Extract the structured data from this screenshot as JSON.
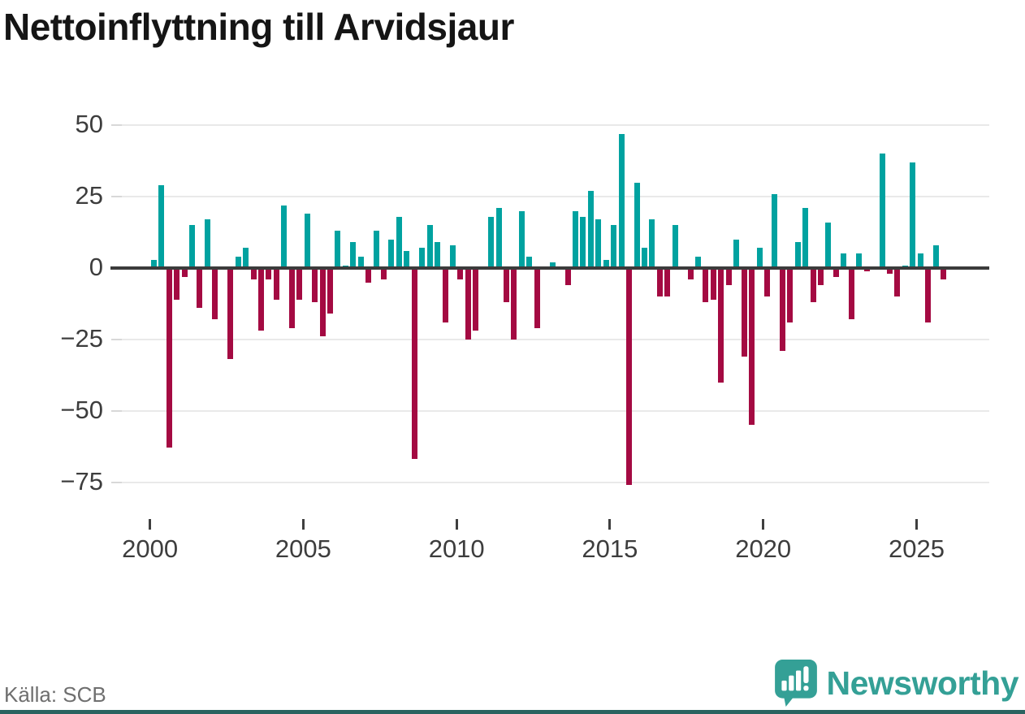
{
  "title": "Nettoinflyttning till Arvidsjaur",
  "source": "Källa: SCB",
  "brand": {
    "name": "Newsworthy",
    "icon": "newsworthy-speech-bubble-chart-icon"
  },
  "colors": {
    "positive": "#00a2a0",
    "negative": "#a40a42",
    "grid": "#e9e9e9",
    "zero_line": "#3b3b3b",
    "axis_text": "#3d3d3d",
    "title_text": "#151515",
    "source_text": "#6f6f6f",
    "brand_teal": "#34a096",
    "bottom_border": "#2a6360"
  },
  "chart_data": {
    "type": "bar",
    "title": "Nettoinflyttning till Arvidsjaur",
    "xlabel": "",
    "ylabel": "",
    "x_unit": "quarter",
    "grid": true,
    "legend": "none",
    "ylim": [
      -80,
      54
    ],
    "yticks": [
      50,
      25,
      0,
      -25,
      -50,
      -75
    ],
    "xticks": [
      2000,
      2005,
      2010,
      2015,
      2020,
      2025
    ],
    "categories": [
      "2000Q1",
      "2000Q2",
      "2000Q3",
      "2000Q4",
      "2001Q1",
      "2001Q2",
      "2001Q3",
      "2001Q4",
      "2002Q1",
      "2002Q2",
      "2002Q3",
      "2002Q4",
      "2003Q1",
      "2003Q2",
      "2003Q3",
      "2003Q4",
      "2004Q1",
      "2004Q2",
      "2004Q3",
      "2004Q4",
      "2005Q1",
      "2005Q2",
      "2005Q3",
      "2005Q4",
      "2006Q1",
      "2006Q2",
      "2006Q3",
      "2006Q4",
      "2007Q1",
      "2007Q2",
      "2007Q3",
      "2007Q4",
      "2008Q1",
      "2008Q2",
      "2008Q3",
      "2008Q4",
      "2009Q1",
      "2009Q2",
      "2009Q3",
      "2009Q4",
      "2010Q1",
      "2010Q2",
      "2010Q3",
      "2010Q4",
      "2011Q1",
      "2011Q2",
      "2011Q3",
      "2011Q4",
      "2012Q1",
      "2012Q2",
      "2012Q3",
      "2012Q4",
      "2013Q1",
      "2013Q2",
      "2013Q3",
      "2013Q4",
      "2014Q1",
      "2014Q2",
      "2014Q3",
      "2014Q4",
      "2015Q1",
      "2015Q2",
      "2015Q3",
      "2015Q4",
      "2016Q1",
      "2016Q2",
      "2016Q3",
      "2016Q4",
      "2017Q1",
      "2017Q2",
      "2017Q3",
      "2017Q4",
      "2018Q1",
      "2018Q2",
      "2018Q3",
      "2018Q4",
      "2019Q1",
      "2019Q2",
      "2019Q3",
      "2019Q4",
      "2020Q1",
      "2020Q2",
      "2020Q3",
      "2020Q4",
      "2021Q1",
      "2021Q2",
      "2021Q3",
      "2021Q4",
      "2022Q1",
      "2022Q2",
      "2022Q3",
      "2022Q4",
      "2023Q1",
      "2023Q2",
      "2023Q3",
      "2023Q4",
      "2024Q1",
      "2024Q2",
      "2024Q3",
      "2024Q4",
      "2025Q1",
      "2025Q2",
      "2025Q3",
      "2025Q4"
    ],
    "values": [
      3,
      29,
      -63,
      -11,
      -3,
      15,
      -14,
      17,
      -18,
      0,
      -32,
      4,
      7,
      -4,
      -22,
      -4,
      -11,
      22,
      -21,
      -11,
      19,
      -12,
      -24,
      -16,
      13,
      1,
      9,
      4,
      -5,
      13,
      -4,
      10,
      18,
      6,
      -67,
      7,
      15,
      9,
      -19,
      8,
      -4,
      -25,
      -22,
      0,
      18,
      21,
      -12,
      -25,
      20,
      4,
      -21,
      0,
      2,
      0,
      -6,
      20,
      18,
      27,
      17,
      3,
      15,
      47,
      -76,
      30,
      7,
      17,
      -10,
      -10,
      15,
      0,
      -4,
      4,
      -12,
      -11,
      -40,
      -6,
      10,
      -31,
      -55,
      7,
      -10,
      26,
      -29,
      -19,
      9,
      21,
      -12,
      -6,
      16,
      -3,
      5,
      -18,
      5,
      -1,
      0,
      40,
      -2,
      -10,
      1,
      37,
      5,
      -19,
      8,
      -4
    ]
  }
}
